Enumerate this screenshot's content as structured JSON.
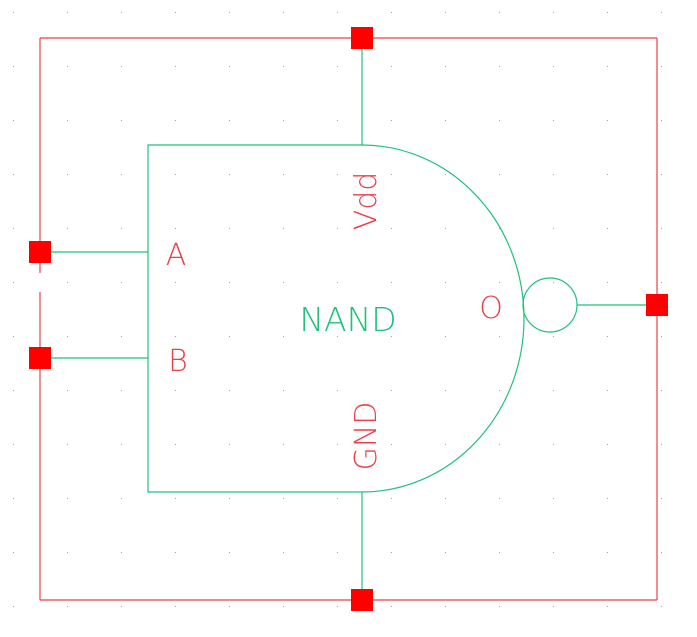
{
  "symbol": {
    "gate_label": "NAND",
    "pins": {
      "input_a": "A",
      "input_b": "B",
      "output": "O",
      "power": "Vdd",
      "ground": "GND"
    }
  },
  "colors": {
    "background": "#ffffff",
    "boundary": "#e8414a",
    "pin_marker": "#ff0000",
    "gate_body": "#22c17b",
    "pin_label": "#e8414a",
    "grid_dot": "#a0a0a0"
  }
}
